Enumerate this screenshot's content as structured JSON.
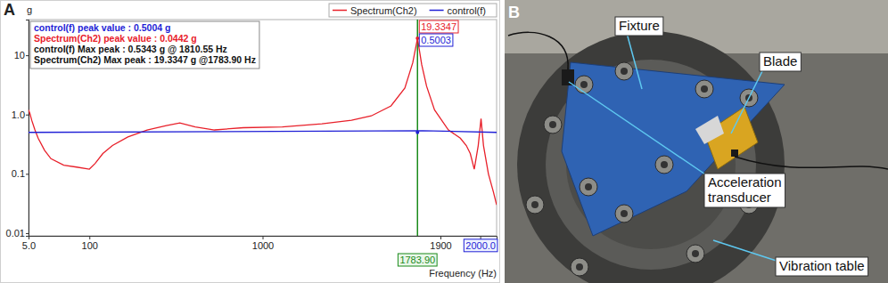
{
  "chart_data": {
    "type": "line",
    "title": "A",
    "y_label": "g",
    "x_label": "Frequency (Hz)",
    "log": "y",
    "grid": false,
    "legend": "top-right",
    "xlim": [
      5,
      2100
    ],
    "xticks": [
      {
        "value": 5,
        "label": "5.0"
      },
      100,
      1000,
      1900,
      {
        "value": 2000,
        "label": "2000.0"
      }
    ],
    "ylim": [
      0.009,
      40
    ],
    "yticks": [
      0.01,
      0.1,
      {
        "value": 1,
        "label": "1.0"
      },
      10
    ],
    "annotations": [
      "control(f) peak value : 0.5004 g",
      "Spectrum(Ch2) peak value : 0.0442 g",
      "control(f) Max peak : 0.5343 g @ 1810.55 Hz",
      "Spectrum(Ch2) Max peak : 19.3347 g @1783.90 Hz"
    ],
    "cursor": {
      "x": {
        "value": 1783.9,
        "label": "1783.90"
      },
      "values": [
        {
          "value": 19.3347,
          "label": "19.3347",
          "color": "#e8202a"
        },
        {
          "value": 0.5003,
          "label": "0.5003",
          "color": "#1f1fd6"
        }
      ]
    },
    "series": [
      {
        "name": "Spectrum(Ch2)",
        "color": "#e8202a",
        "x": [
          5,
          7,
          10,
          15,
          20,
          30,
          40,
          60,
          80,
          100,
          130,
          170,
          220,
          300,
          400,
          500,
          570,
          650,
          750,
          900,
          1100,
          1300,
          1450,
          1550,
          1650,
          1720,
          1760,
          1783.9,
          1805,
          1830,
          1870,
          1920,
          1950,
          1965,
          1975,
          1985,
          1995,
          2005,
          2020,
          2050,
          2080,
          2100
        ],
        "values": [
          1.2,
          1.05,
          0.8,
          0.55,
          0.4,
          0.25,
          0.18,
          0.14,
          0.13,
          0.12,
          0.15,
          0.22,
          0.3,
          0.42,
          0.55,
          0.65,
          0.72,
          0.62,
          0.55,
          0.6,
          0.62,
          0.7,
          0.8,
          0.95,
          1.4,
          2.8,
          7.5,
          19.3347,
          7,
          3,
          1.2,
          0.55,
          0.4,
          0.3,
          0.22,
          0.12,
          0.3,
          0.85,
          0.3,
          0.1,
          0.05,
          0.03
        ]
      },
      {
        "name": "control(f)",
        "color": "#1f1fd6",
        "x": [
          5,
          1810.55,
          2100
        ],
        "values": [
          0.5,
          0.5343,
          0.5
        ]
      }
    ]
  },
  "panel_b": {
    "label": "B",
    "callouts": [
      [
        "Fixture"
      ],
      [
        "Blade"
      ],
      [
        "Acceleration",
        "transducer"
      ],
      [
        "Vibration table"
      ]
    ]
  }
}
